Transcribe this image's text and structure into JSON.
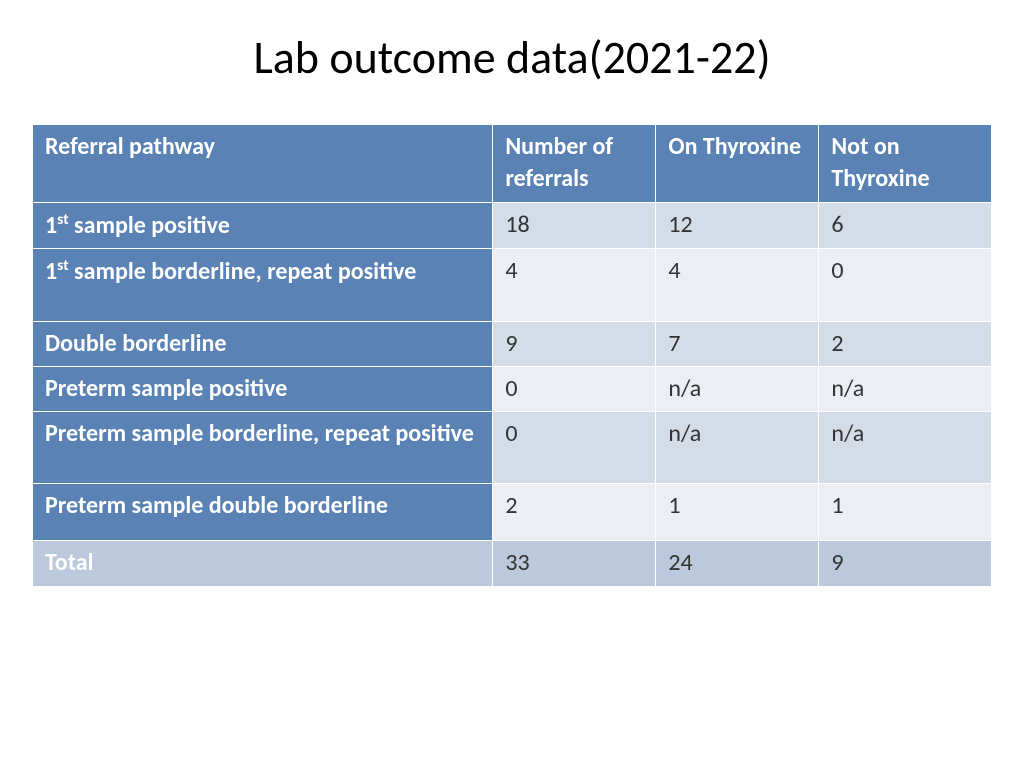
{
  "title": "Lab outcome data(2021-22)",
  "table": {
    "type": "table",
    "header_bg": "#5a82b5",
    "header_fg": "#ffffff",
    "rowlabel_bg": "#5a82b5",
    "rowlabel_fg": "#ffffff",
    "band_a_bg": "#d4dce8",
    "band_b_bg": "#ebeef5",
    "total_bg": "#bcc9dc",
    "border_color": "#ffffff",
    "font_family": "Calibri",
    "header_fontsize": 24,
    "cell_fontsize": 24,
    "columns": [
      {
        "label": "Referral pathway",
        "width_pct": 48,
        "align": "left"
      },
      {
        "label": "Number of referrals",
        "width_pct": 17,
        "align": "left"
      },
      {
        "label": "On Thyroxine",
        "width_pct": 17,
        "align": "left"
      },
      {
        "label": "Not on Thyroxine",
        "width_pct": 18,
        "align": "left"
      }
    ],
    "rows": [
      {
        "label_html": "1<sup>st</sup> sample positive",
        "cells": [
          "18",
          "12",
          "6"
        ],
        "band": "a"
      },
      {
        "label_html": "1<sup>st</sup> sample borderline, repeat positive",
        "cells": [
          "4",
          "4",
          "0"
        ],
        "band": "b",
        "height": "tall"
      },
      {
        "label_html": "Double borderline",
        "cells": [
          "9",
          "7",
          "2"
        ],
        "band": "a"
      },
      {
        "label_html": "Preterm sample positive",
        "cells": [
          "0",
          "n/a",
          "n/a"
        ],
        "band": "b"
      },
      {
        "label_html": "Preterm sample borderline, repeat positive",
        "cells": [
          "0",
          "n/a",
          "n/a"
        ],
        "band": "a",
        "height": "tall"
      },
      {
        "label_html": "Preterm sample double borderline",
        "cells": [
          "2",
          "1",
          "1"
        ],
        "band": "b",
        "height": "med"
      }
    ],
    "total": {
      "label": "Total",
      "cells": [
        "33",
        "24",
        "9"
      ]
    }
  }
}
